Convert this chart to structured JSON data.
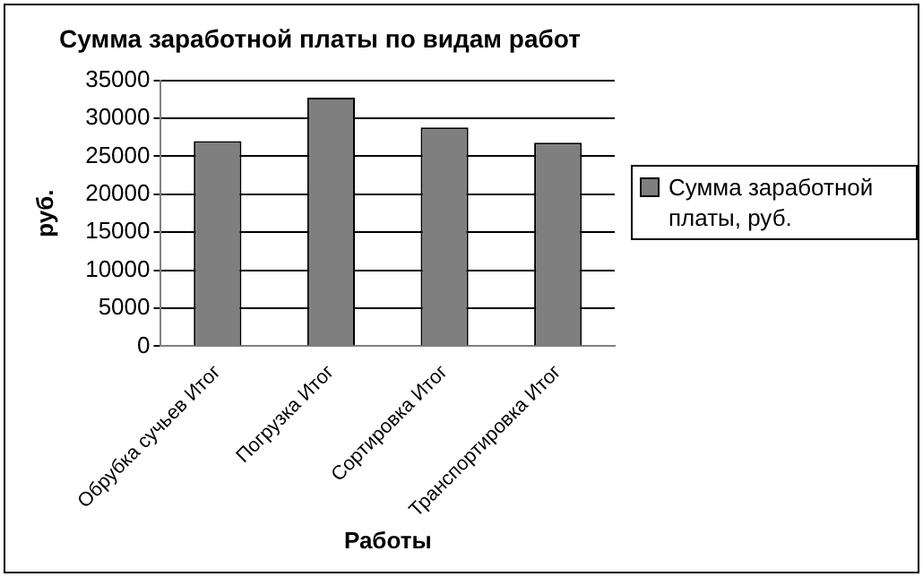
{
  "chart_data": {
    "type": "bar",
    "title": "Сумма заработной платы по видам работ",
    "xlabel": "Работы",
    "ylabel": "руб.",
    "categories": [
      "Обрубка сучьев Итог",
      "Погрузка Итог",
      "Сортировка Итог",
      "Транспортировка Итог"
    ],
    "series": [
      {
        "name": "Сумма заработной платы, руб.",
        "color": "#7f7f7f",
        "values": [
          27000,
          32700,
          28800,
          26800
        ]
      }
    ],
    "ylim": [
      0,
      35000
    ],
    "yticks": [
      0,
      5000,
      10000,
      15000,
      20000,
      25000,
      30000,
      35000
    ],
    "grid": "y",
    "legend": "right"
  }
}
